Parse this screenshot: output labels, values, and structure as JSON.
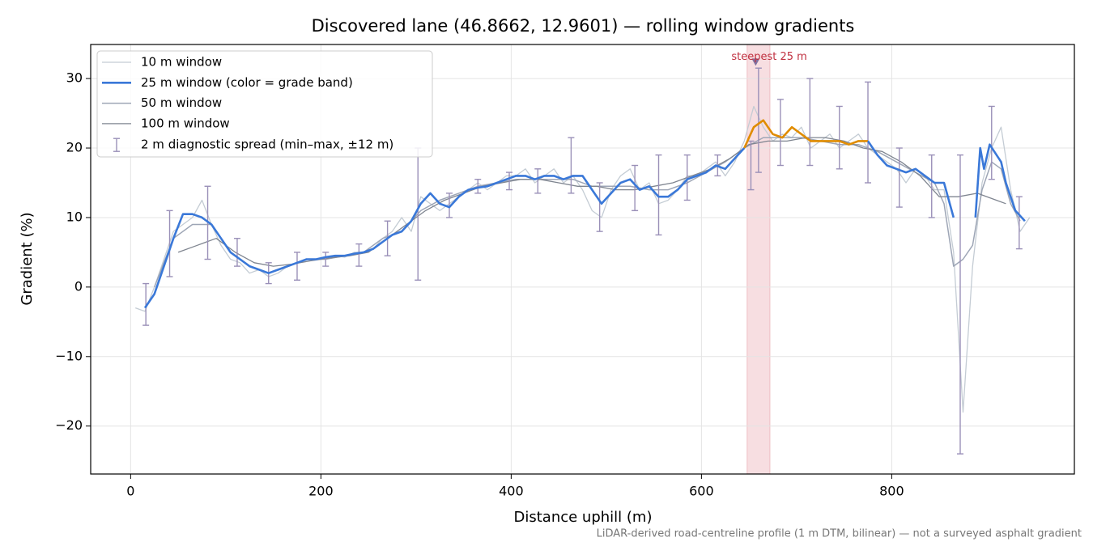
{
  "chart_data": {
    "type": "line",
    "title": "Discovered lane (46.8662, 12.9601) — rolling window gradients",
    "xlabel": "Distance uphill (m)",
    "ylabel": "Gradient (%)",
    "footnote": "LiDAR-derived road-centreline profile (1 m DTM, bilinear) — not a surveyed asphalt gradient",
    "xlim": [
      -42,
      992
    ],
    "ylim": [
      -26.9,
      34.9
    ],
    "xticks": [
      0,
      200,
      400,
      600,
      800
    ],
    "yticks": [
      {
        "value": -20,
        "label": "−20"
      },
      {
        "value": -10,
        "label": "−10"
      },
      0,
      10,
      20,
      30
    ],
    "grid": true,
    "legend": "upper left",
    "grade_band": {
      "threshold": 20,
      "color": "#e08c00"
    },
    "series": [
      {
        "name": "10 m window",
        "color": "#c4ccd4",
        "width": 1.3,
        "x": [
          5,
          15,
          25,
          35,
          45,
          55,
          65,
          75,
          85,
          95,
          105,
          115,
          125,
          135,
          145,
          155,
          165,
          175,
          185,
          195,
          205,
          215,
          225,
          235,
          245,
          255,
          265,
          275,
          285,
          295,
          305,
          315,
          325,
          335,
          345,
          355,
          365,
          375,
          385,
          395,
          405,
          415,
          425,
          435,
          445,
          455,
          465,
          475,
          485,
          495,
          505,
          515,
          525,
          535,
          545,
          555,
          565,
          575,
          585,
          595,
          605,
          615,
          625,
          635,
          645,
          655,
          665,
          675,
          685,
          695,
          705,
          715,
          725,
          735,
          745,
          755,
          765,
          775,
          785,
          795,
          805,
          815,
          825,
          835,
          845,
          855,
          865,
          875,
          885,
          895,
          905,
          915,
          925,
          935,
          945
        ],
        "values": [
          -3,
          -3.5,
          0,
          4,
          8,
          9,
          10,
          12.5,
          9,
          6,
          4,
          3.5,
          2,
          2.5,
          1.5,
          2,
          3,
          3.5,
          4,
          4,
          4,
          4.5,
          4.3,
          5,
          5,
          5.5,
          7,
          8,
          10,
          8,
          13,
          12,
          11,
          12,
          13,
          14,
          15,
          14,
          15,
          16,
          16,
          17,
          15,
          16,
          17,
          15,
          16,
          14,
          11,
          10,
          14,
          16,
          17,
          14,
          15,
          12,
          12.5,
          14,
          16,
          16,
          17,
          18,
          16,
          18,
          21,
          26,
          23,
          21,
          22,
          21.5,
          23,
          20,
          21,
          22,
          20,
          21,
          22,
          20,
          19,
          18,
          17,
          15,
          17,
          16,
          14,
          14,
          5,
          -18,
          3,
          15,
          20,
          23,
          14,
          8,
          10
        ]
      },
      {
        "name": "25 m window (color = grade band)",
        "color": "#3a78d8",
        "width": 2.6,
        "banded": true,
        "x": [
          15,
          25,
          35,
          45,
          55,
          65,
          75,
          85,
          95,
          105,
          115,
          125,
          135,
          145,
          155,
          165,
          175,
          185,
          195,
          205,
          215,
          225,
          235,
          245,
          255,
          265,
          275,
          285,
          295,
          305,
          315,
          325,
          335,
          345,
          355,
          365,
          375,
          385,
          395,
          405,
          415,
          425,
          435,
          445,
          455,
          465,
          475,
          485,
          495,
          505,
          515,
          525,
          535,
          545,
          555,
          565,
          575,
          585,
          595,
          605,
          615,
          625,
          635,
          645,
          655,
          665,
          675,
          685,
          695,
          705,
          715,
          725,
          735,
          745,
          755,
          765,
          775,
          785,
          795,
          805,
          815,
          825,
          835,
          845,
          855,
          865,
          875,
          888,
          893,
          897,
          903,
          915,
          920,
          930,
          940
        ],
        "values": [
          -3,
          -1,
          3,
          7,
          10.5,
          10.5,
          10,
          9,
          7,
          5,
          4,
          3,
          2.5,
          2,
          2.5,
          3,
          3.5,
          4,
          4,
          4.3,
          4.5,
          4.5,
          4.8,
          5,
          5.5,
          6.5,
          7.5,
          8,
          9.5,
          12,
          13.5,
          12,
          11.5,
          13,
          14,
          14.3,
          14.5,
          15,
          15.5,
          16,
          16,
          15.5,
          16,
          16,
          15.5,
          16,
          16,
          14,
          12,
          13.5,
          15,
          15.5,
          14,
          14.5,
          13,
          13,
          14,
          15.5,
          16,
          16.5,
          17.5,
          17,
          18.5,
          20,
          23,
          24,
          22,
          21.5,
          23,
          22,
          21,
          21,
          21,
          21,
          20.5,
          21,
          21,
          19,
          17.5,
          17,
          16.5,
          17,
          16,
          15,
          15,
          10,
          null,
          10,
          20,
          17,
          20.5,
          18,
          15,
          11,
          9.5
        ]
      },
      {
        "name": "50 m window",
        "color": "#9ea6b6",
        "width": 1.5,
        "x": [
          25,
          45,
          65,
          85,
          105,
          125,
          145,
          165,
          185,
          205,
          225,
          245,
          265,
          285,
          305,
          325,
          345,
          365,
          385,
          405,
          425,
          445,
          465,
          485,
          505,
          525,
          545,
          565,
          585,
          605,
          625,
          645,
          665,
          685,
          705,
          725,
          745,
          765,
          785,
          805,
          825,
          845,
          855,
          865,
          875,
          885,
          895,
          905,
          915,
          925,
          935
        ],
        "values": [
          0,
          7,
          9,
          9,
          5,
          3,
          2,
          3,
          4,
          4,
          4.5,
          5,
          7,
          8,
          11,
          12.5,
          13.5,
          14.5,
          15,
          15.5,
          15.5,
          15.5,
          15.5,
          14.5,
          14.5,
          14.5,
          14,
          14,
          15,
          16.5,
          18,
          20,
          21.5,
          21.5,
          21.5,
          21,
          20.5,
          20.5,
          19.5,
          18,
          16.5,
          15,
          12,
          3,
          4,
          6,
          14,
          18,
          17,
          12,
          9.5
        ]
      },
      {
        "name": "100 m window",
        "color": "#7f8590",
        "width": 1.3,
        "x": [
          50,
          70,
          90,
          110,
          130,
          150,
          170,
          190,
          210,
          230,
          250,
          270,
          290,
          310,
          330,
          350,
          370,
          390,
          410,
          430,
          450,
          470,
          490,
          510,
          530,
          550,
          570,
          590,
          610,
          630,
          650,
          670,
          690,
          710,
          730,
          750,
          770,
          790,
          810,
          830,
          850,
          870,
          890,
          910,
          920
        ],
        "values": [
          5,
          6,
          7,
          5,
          3.5,
          3,
          3.3,
          3.8,
          4.2,
          4.5,
          5,
          7,
          9,
          11,
          12.5,
          13.5,
          14.5,
          15,
          15.5,
          15.5,
          15,
          14.5,
          14.5,
          14,
          14,
          14.5,
          15,
          16,
          17,
          18.5,
          20.5,
          21,
          21,
          21.5,
          21.5,
          21,
          20,
          19.5,
          18,
          16,
          13,
          13,
          13.5,
          12.5,
          12
        ]
      }
    ],
    "errorbars": {
      "name": "2 m diagnostic spread (min–max, ±12 m)",
      "color": "#9a90b8",
      "x": [
        16,
        41,
        81,
        112,
        145,
        175,
        205,
        240,
        270,
        302,
        335,
        365,
        398,
        428,
        463,
        493,
        530,
        555,
        585,
        617,
        652,
        660,
        683,
        714,
        745,
        775,
        808,
        842,
        872,
        905,
        934
      ],
      "low": [
        -5.5,
        1.5,
        4,
        3,
        0.5,
        1,
        3,
        3,
        4.5,
        1,
        10,
        13.5,
        14,
        13.5,
        13.5,
        8,
        11,
        7.5,
        12.5,
        16,
        14,
        16.5,
        17.5,
        17.5,
        17,
        15,
        11.5,
        10,
        -24,
        15.5,
        5.5
      ],
      "high": [
        0.5,
        11,
        14.5,
        7,
        3.5,
        5,
        5,
        6.2,
        9.5,
        20,
        13.5,
        15.5,
        16.5,
        17,
        21.5,
        15,
        17.5,
        19,
        19,
        19,
        21,
        31.5,
        27,
        30,
        26,
        29.5,
        20,
        19,
        19,
        26,
        13
      ]
    },
    "highlight": {
      "xrange": [
        648,
        672
      ],
      "color": "#e8a0a8"
    },
    "annotation": {
      "text": "steepest 25 m",
      "x": 657,
      "y": 32.3,
      "color": "#c03040",
      "marker_color": "#8070a0"
    }
  }
}
